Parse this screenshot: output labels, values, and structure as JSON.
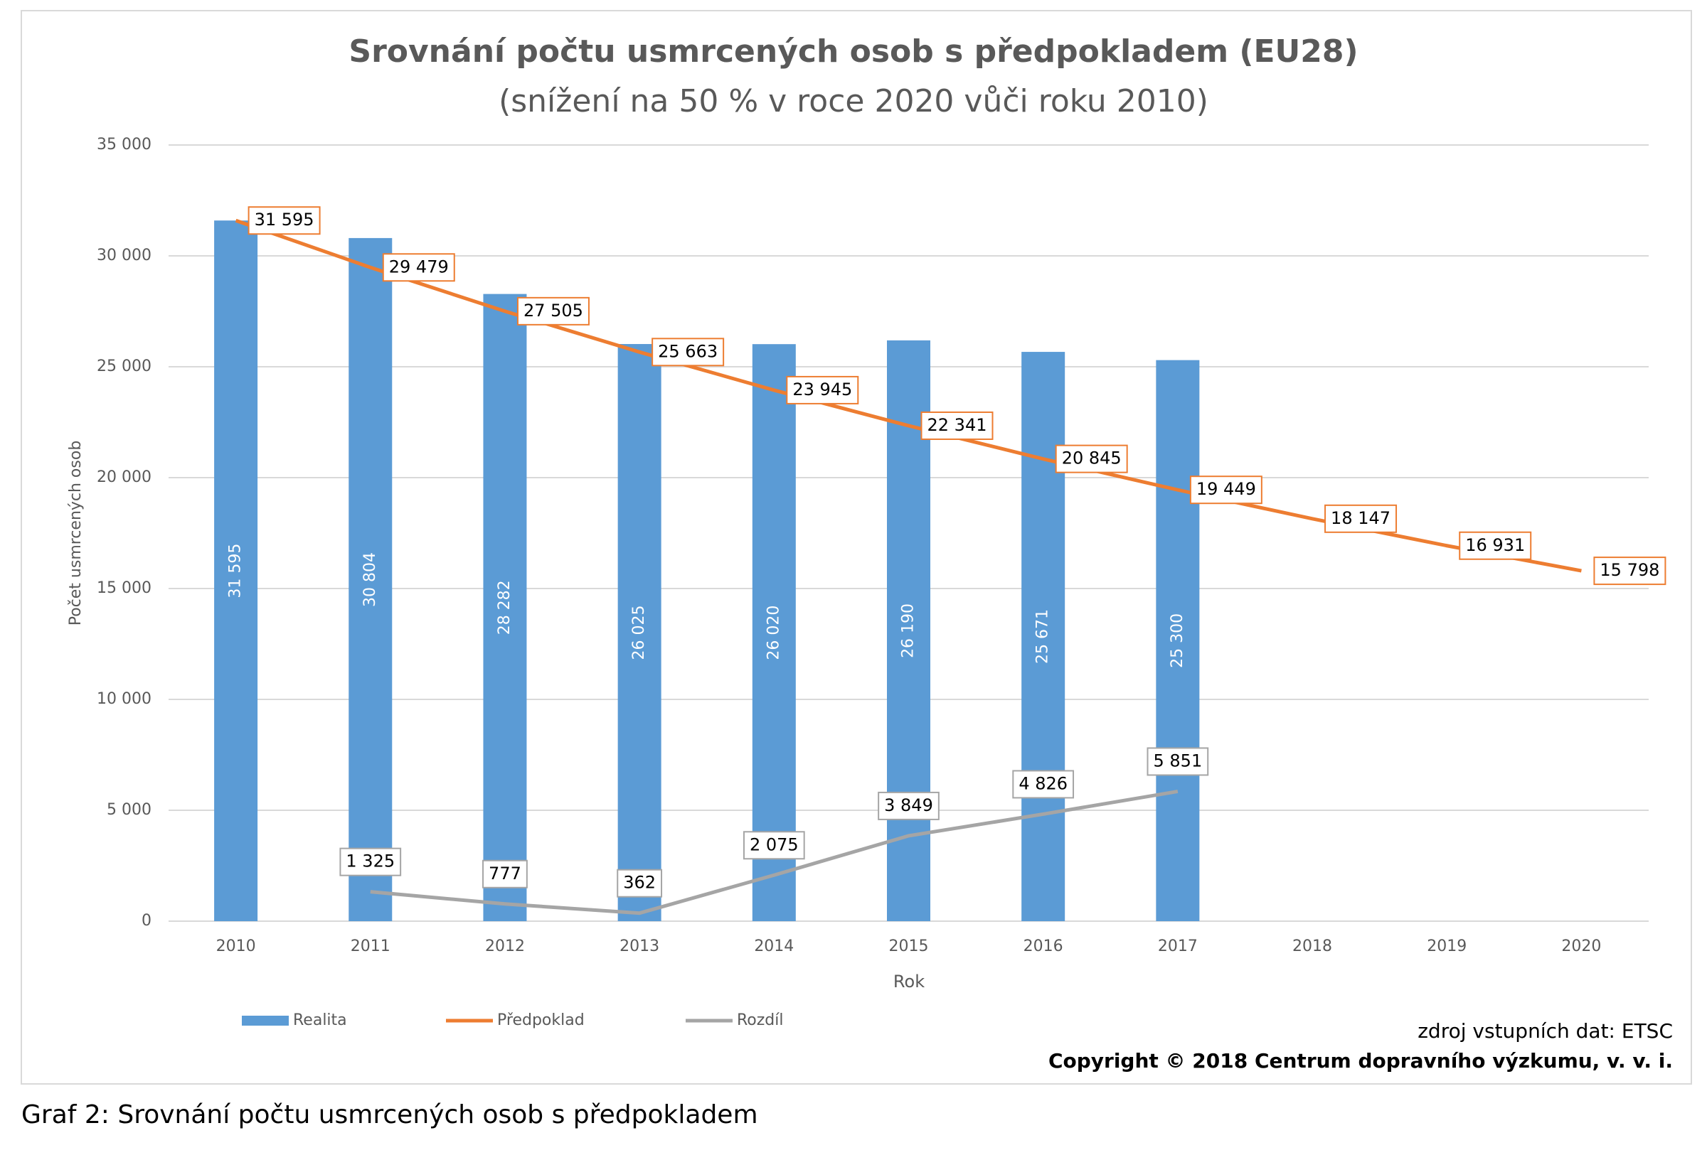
{
  "chart_data": {
    "type": "bar",
    "title": "Srovnání počtu usmrcených osob s předpokladem (EU28)",
    "subtitle": "(snížení na 50 % v roce 2020 vůči roku 2010)",
    "x_label": "Rok",
    "y_label": "Počet usmrcených osob",
    "categories": [
      "2010",
      "2011",
      "2012",
      "2013",
      "2014",
      "2015",
      "2016",
      "2017",
      "2018",
      "2019",
      "2020"
    ],
    "series": [
      {
        "name": "Realita",
        "type": "bar",
        "color": "#5b9bd5",
        "values": [
          31595,
          30804,
          28282,
          26025,
          26020,
          26190,
          25671,
          25300,
          null,
          null,
          null
        ],
        "value_labels": [
          "31 595",
          "30 804",
          "28 282",
          "26 025",
          "26 020",
          "26 190",
          "25 671",
          "25 300",
          null,
          null,
          null
        ]
      },
      {
        "name": "Předpoklad",
        "type": "line",
        "color": "#ed7d31",
        "values": [
          31595,
          29479,
          27505,
          25663,
          23945,
          22341,
          20845,
          19449,
          18147,
          16931,
          15798
        ],
        "value_labels": [
          "31 595",
          "29 479",
          "27 505",
          "25 663",
          "23 945",
          "22 341",
          "20 845",
          "19 449",
          "18 147",
          "16 931",
          "15 798"
        ]
      },
      {
        "name": "Rozdíl",
        "type": "line",
        "color": "#a5a5a5",
        "values": [
          null,
          1325,
          777,
          362,
          2075,
          3849,
          4826,
          5851,
          null,
          null,
          null
        ],
        "value_labels": [
          null,
          "1 325",
          "777",
          "362",
          "2 075",
          "3 849",
          "4 826",
          "5 851",
          null,
          null,
          null
        ]
      }
    ],
    "ylim": [
      0,
      35000
    ],
    "yticks": [
      0,
      {
        "value": 5000,
        "label": "5 000"
      },
      {
        "value": 10000,
        "label": "10 000"
      },
      {
        "value": 15000,
        "label": "15 000"
      },
      {
        "value": 20000,
        "label": "20 000"
      },
      {
        "value": 25000,
        "label": "25 000"
      },
      {
        "value": 30000,
        "label": "30 000"
      },
      {
        "value": 35000,
        "label": "35 000"
      }
    ],
    "grid": true,
    "source": "zdroj vstupních dat: ETSC",
    "copyright": "Copyright © 2018  Centrum dopravního výzkumu, v. v. i.",
    "caption": "Graf 2: Srovnání počtu usmrcených osob s předpokladem"
  }
}
